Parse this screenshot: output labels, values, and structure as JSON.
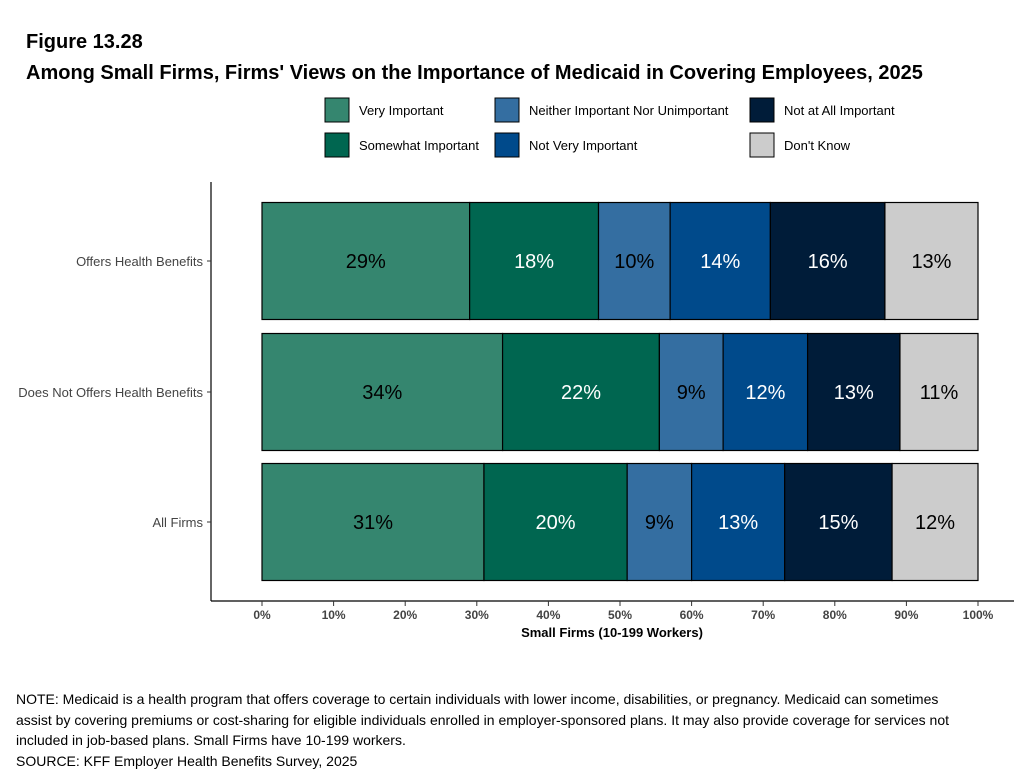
{
  "figure_label": "Figure 13.28",
  "title": "Among Small Firms, Firms' Views on the Importance of Medicaid in Covering Employees, 2025",
  "note": "NOTE: Medicaid is a health program that offers coverage to certain individuals with lower income, disabilities, or pregnancy. Medicaid can sometimes assist by covering premiums or cost-sharing for eligible individuals enrolled in employer-sponsored plans. It may also provide coverage for services not included in job-based plans. Small Firms have 10-199 workers.",
  "source": "SOURCE: KFF Employer Health Benefits Survey, 2025",
  "chart_data": {
    "type": "bar",
    "orientation": "horizontal",
    "stacked": true,
    "xlabel": "Small Firms (10-199 Workers)",
    "ylabel": "",
    "xlim": [
      0,
      100
    ],
    "x_ticks": [
      "0%",
      "10%",
      "20%",
      "30%",
      "40%",
      "50%",
      "60%",
      "70%",
      "80%",
      "90%",
      "100%"
    ],
    "grid": false,
    "legend_position": "top",
    "categories": [
      "Offers Health Benefits",
      "Does Not Offers Health Benefits",
      "All Firms"
    ],
    "series": [
      {
        "name": "Very Important",
        "color": "#35866F",
        "label_color": "#000000",
        "values": [
          29,
          33.6,
          31
        ],
        "labels": [
          "29%",
          "34%",
          "31%"
        ]
      },
      {
        "name": "Somewhat Important",
        "color": "#006650",
        "label_color": "#ffffff",
        "values": [
          18,
          21.9,
          20
        ],
        "labels": [
          "18%",
          "22%",
          "20%"
        ]
      },
      {
        "name": "Neither Important Nor Unimportant",
        "color": "#346EA1",
        "label_color": "#000000",
        "values": [
          10,
          8.9,
          9
        ],
        "labels": [
          "10%",
          "9%",
          "9%"
        ]
      },
      {
        "name": "Not Very Important",
        "color": "#004A8B",
        "label_color": "#ffffff",
        "values": [
          14,
          11.8,
          13
        ],
        "labels": [
          "14%",
          "12%",
          "13%"
        ]
      },
      {
        "name": "Not at All Important",
        "color": "#001C39",
        "label_color": "#ffffff",
        "values": [
          16,
          12.9,
          15
        ],
        "labels": [
          "16%",
          "13%",
          "15%"
        ]
      },
      {
        "name": "Don't Know",
        "color": "#CCCCCC",
        "label_color": "#000000",
        "values": [
          13,
          10.9,
          12
        ],
        "labels": [
          "13%",
          "11%",
          "12%"
        ]
      }
    ]
  }
}
